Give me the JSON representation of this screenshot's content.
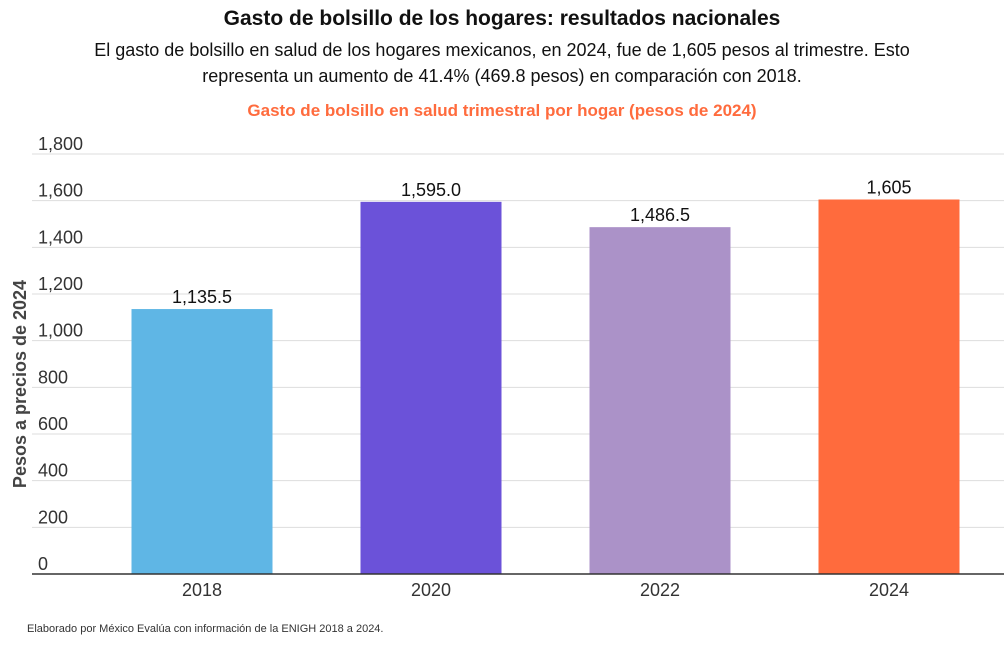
{
  "title": "Gasto de bolsillo de los hogares: resultados nacionales",
  "subtitle": "El gasto de bolsillo en salud de los hogares mexicanos, en 2024, fue de 1,605 pesos al trimestre. Esto representa un aumento de 41.4% (469.8 pesos) en comparación con 2018.",
  "source_note": "Elaborado por México Evalúa con información de la ENIGH 2018 a 2024.",
  "chart_data": {
    "type": "bar",
    "title": "Gasto de bolsillo en salud trimestral por hogar (pesos de 2024)",
    "xlabel": "",
    "ylabel": "Pesos a precios de 2024",
    "ylim": [
      0,
      1800
    ],
    "yticks": [
      0,
      200,
      400,
      600,
      800,
      1000,
      1200,
      1400,
      1600,
      1800
    ],
    "ytick_labels": [
      "0",
      "200",
      "400",
      "600",
      "800",
      "1,000",
      "1,200",
      "1,400",
      "1,600",
      "1,800"
    ],
    "grid": true,
    "categories": [
      "2018",
      "2020",
      "2022",
      "2024"
    ],
    "values": [
      1135.5,
      1595.0,
      1486.5,
      1605
    ],
    "data_labels": [
      "1,135.5",
      "1,595.0",
      "1,486.5",
      "1,605"
    ],
    "colors": [
      "#5fb6e5",
      "#6b52d9",
      "#ab92c8",
      "#ff6b3d"
    ]
  }
}
